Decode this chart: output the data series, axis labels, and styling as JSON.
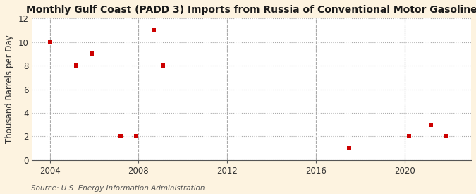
{
  "title": "Monthly Gulf Coast (PADD 3) Imports from Russia of Conventional Motor Gasoline",
  "ylabel": "Thousand Barrels per Day",
  "source": "Source: U.S. Energy Information Administration",
  "background_color": "#fdf3e0",
  "plot_background_color": "#ffffff",
  "point_color": "#cc0000",
  "marker": "s",
  "marker_size": 18,
  "xlim": [
    2003.2,
    2023.0
  ],
  "ylim": [
    0,
    12
  ],
  "xticks": [
    2004,
    2008,
    2012,
    2016,
    2020
  ],
  "yticks": [
    0,
    2,
    4,
    6,
    8,
    10,
    12
  ],
  "data_x": [
    2004.0,
    2005.2,
    2005.9,
    2007.2,
    2007.9,
    2008.7,
    2009.1,
    2017.5,
    2020.2,
    2021.2,
    2021.9
  ],
  "data_y": [
    10,
    8,
    9,
    2,
    2,
    11,
    8,
    1,
    2,
    3,
    2
  ],
  "title_fontsize": 10,
  "label_fontsize": 8.5,
  "tick_fontsize": 8.5,
  "source_fontsize": 7.5,
  "grid_color": "#aaaaaa",
  "grid_linestyle": ":",
  "grid_linewidth": 0.8
}
